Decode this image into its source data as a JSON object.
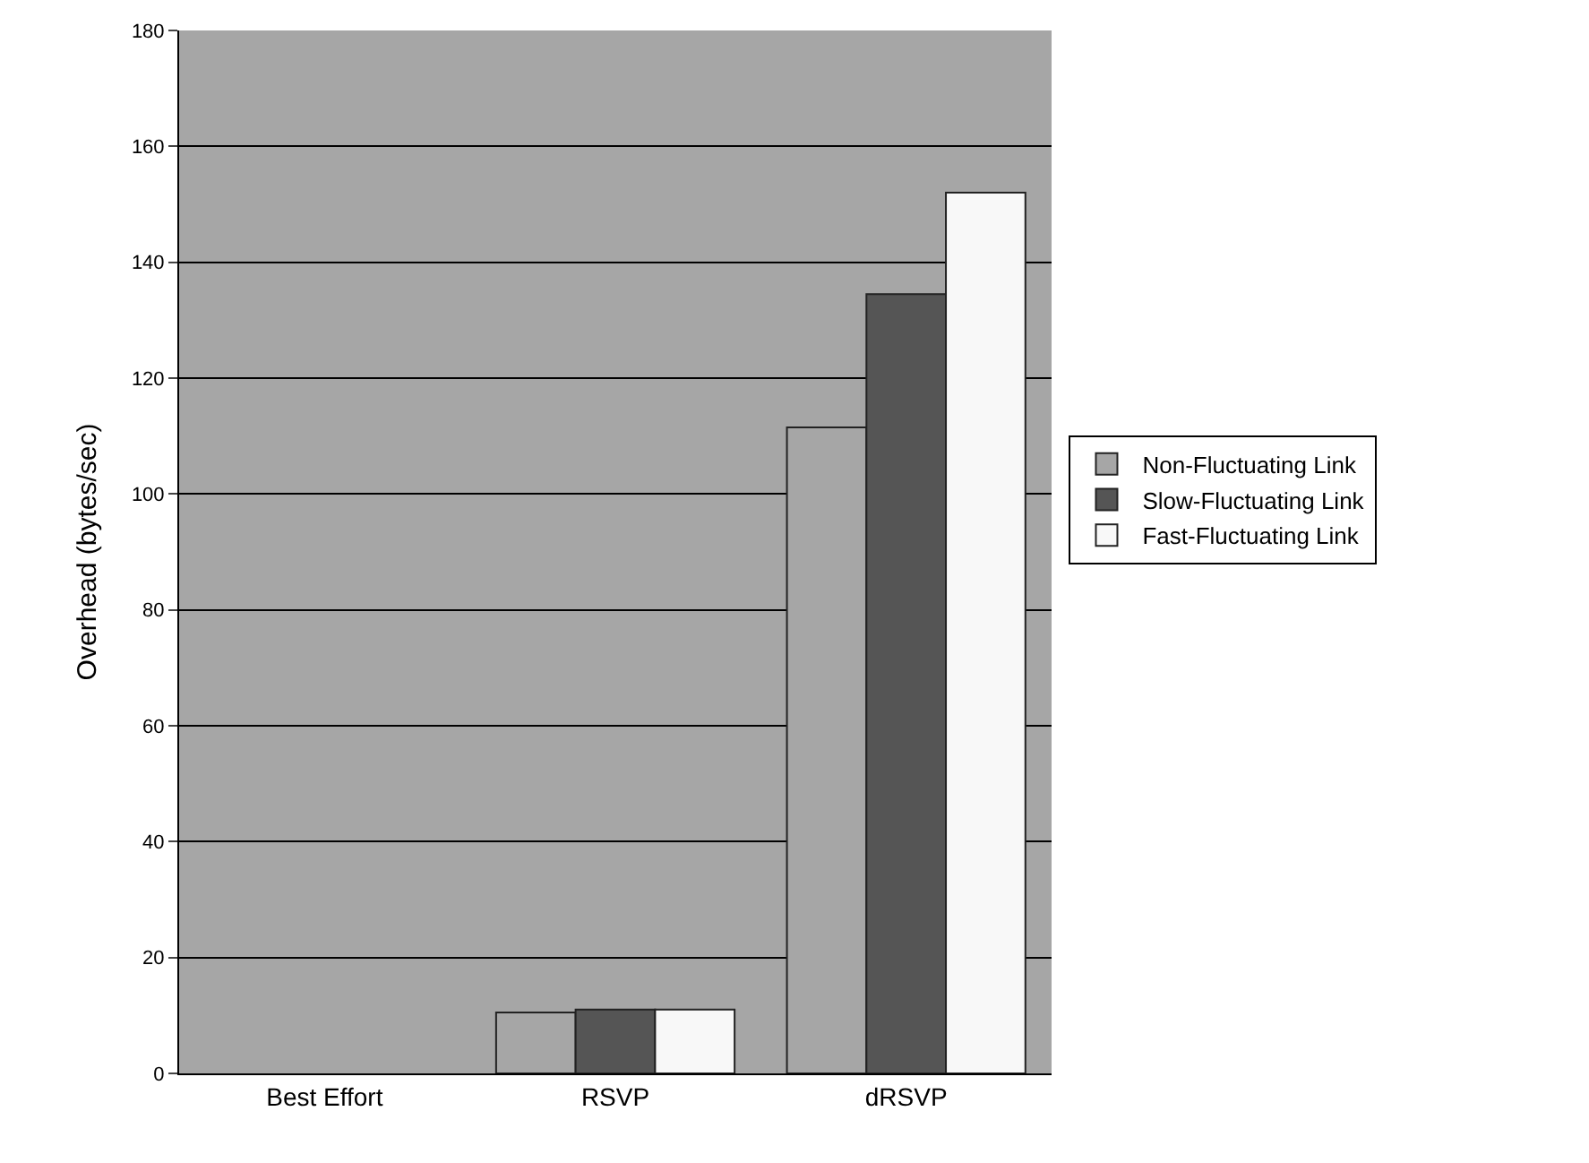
{
  "chart_data": {
    "type": "bar",
    "ylabel": "Overhead (bytes/sec)",
    "categories": [
      "Best Effort",
      "RSVP",
      "dRSVP"
    ],
    "series": [
      {
        "name": "Non-Fluctuating Link",
        "color": "#a6a6a6",
        "values": [
          null,
          10.5,
          111.5
        ]
      },
      {
        "name": "Slow-Fluctuating Link",
        "color": "#555555",
        "values": [
          null,
          11,
          134.5
        ]
      },
      {
        "name": "Fast-Fluctuating Link",
        "color": "#f8f8f8",
        "values": [
          null,
          11,
          152
        ]
      }
    ],
    "ylim": [
      0,
      180
    ],
    "yticks": [
      0,
      20,
      40,
      60,
      80,
      100,
      120,
      140,
      160,
      180
    ],
    "grid": "y",
    "legend": "right"
  }
}
